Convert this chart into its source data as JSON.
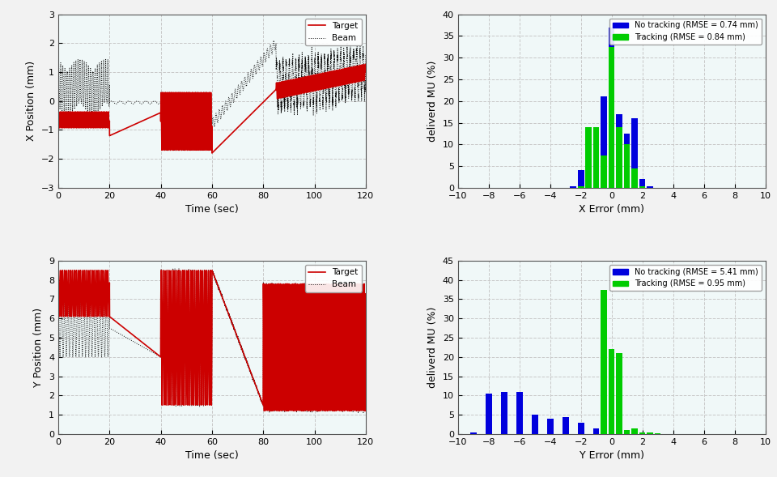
{
  "background_color": "#f2f2f2",
  "plot_bg_color": "#f0f8f8",
  "grid_color": "#c8c8c8",
  "top_left": {
    "xlabel": "Time (sec)",
    "ylabel": "X Position (mm)",
    "xlim": [
      0,
      120
    ],
    "ylim": [
      -3,
      3
    ],
    "yticks": [
      -3,
      -2,
      -1,
      0,
      1,
      2,
      3
    ],
    "xticks": [
      0,
      20,
      40,
      60,
      80,
      100,
      120
    ],
    "legend_target": "Target",
    "legend_beam": "Beam",
    "target_color": "#cc0000",
    "beam_color": "#111111"
  },
  "bottom_left": {
    "xlabel": "Time (sec)",
    "ylabel": "Y Position (mm)",
    "xlim": [
      0,
      120
    ],
    "ylim": [
      0,
      9
    ],
    "yticks": [
      0,
      1,
      2,
      3,
      4,
      5,
      6,
      7,
      8,
      9
    ],
    "xticks": [
      0,
      20,
      40,
      60,
      80,
      100,
      120
    ],
    "legend_target": "Target",
    "legend_beam": "Beam",
    "target_color": "#cc0000",
    "beam_color": "#111111"
  },
  "top_right": {
    "xlabel": "X Error (mm)",
    "ylabel": "deliverd MU (%)",
    "xlim": [
      -10,
      10
    ],
    "ylim": [
      0,
      40
    ],
    "xticks": [
      -10,
      -8,
      -6,
      -4,
      -2,
      0,
      2,
      4,
      6,
      8,
      10
    ],
    "yticks": [
      0,
      5,
      10,
      15,
      20,
      25,
      30,
      35,
      40
    ],
    "legend_no_track": "No tracking (RMSE = 0.74 mm)",
    "legend_track": "Tracking (RMSE = 0.84 mm)",
    "no_track_color": "#0000dd",
    "track_color": "#00cc00",
    "no_track_centers": [
      -2.5,
      -2.0,
      -1.5,
      -1.0,
      -0.5,
      0.0,
      0.5,
      1.0,
      1.5,
      2.0,
      2.5
    ],
    "no_track_vals": [
      0.3,
      4.0,
      7.5,
      14.0,
      21.0,
      37.0,
      17.0,
      12.5,
      16.0,
      2.0,
      0.3
    ],
    "track_centers": [
      -2.0,
      -1.5,
      -1.0,
      -0.5,
      0.0,
      0.5,
      1.0,
      1.5,
      2.0
    ],
    "track_vals": [
      0.3,
      14.0,
      14.0,
      7.5,
      32.5,
      14.0,
      10.0,
      4.5,
      0.3
    ]
  },
  "bottom_right": {
    "xlabel": "Y Error (mm)",
    "ylabel": "deliverd MU (%)",
    "xlim": [
      -10,
      10
    ],
    "ylim": [
      0,
      45
    ],
    "xticks": [
      -10,
      -8,
      -6,
      -4,
      -2,
      0,
      2,
      4,
      6,
      8,
      10
    ],
    "yticks": [
      0,
      5,
      10,
      15,
      20,
      25,
      30,
      35,
      40,
      45
    ],
    "legend_no_track": "No tracking (RMSE = 5.41 mm)",
    "legend_track": "Tracking (RMSE = 0.95 mm)",
    "no_track_color": "#0000dd",
    "track_color": "#00cc00",
    "no_track_centers": [
      -9.0,
      -8.0,
      -7.0,
      -6.0,
      -5.0,
      -4.0,
      -3.0,
      -2.0,
      -1.0,
      0.0,
      1.0
    ],
    "no_track_vals": [
      0.5,
      10.5,
      11.0,
      11.0,
      5.0,
      4.0,
      4.5,
      3.0,
      1.5,
      0.5,
      0.3
    ],
    "track_centers": [
      -0.5,
      0.0,
      0.5,
      1.0,
      1.5,
      2.0,
      2.5,
      3.0
    ],
    "track_vals": [
      37.5,
      22.0,
      21.0,
      1.0,
      1.5,
      0.5,
      0.5,
      0.3
    ]
  }
}
